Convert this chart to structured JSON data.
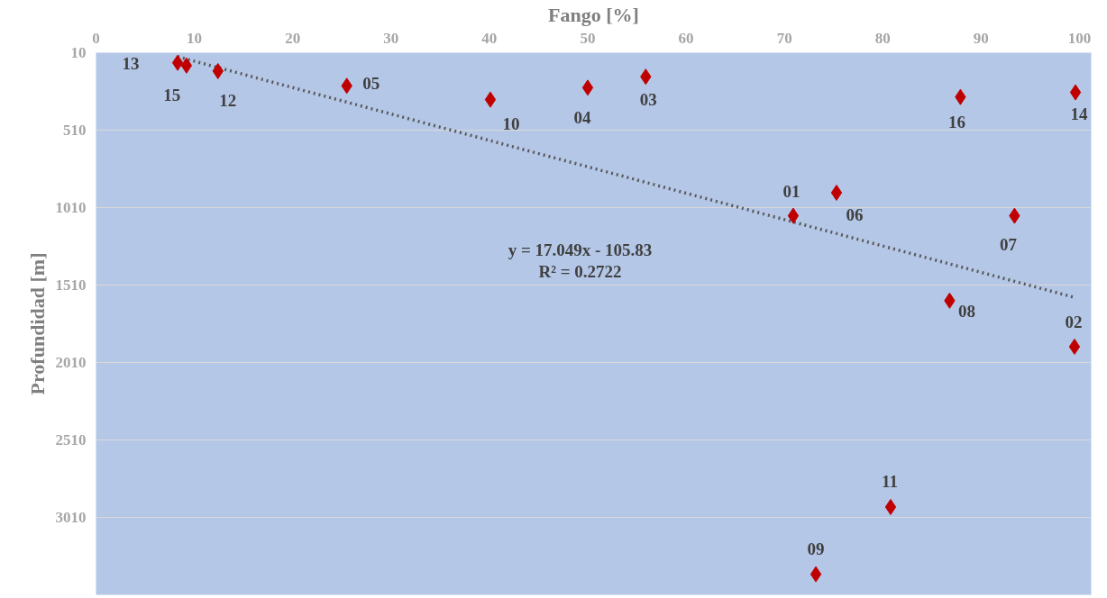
{
  "chart_data": {
    "type": "scatter",
    "xlabel": "Fango [%]",
    "ylabel": "Profundidad [m]",
    "xlim": [
      0,
      101.2
    ],
    "xticks": [
      0,
      10,
      20,
      30,
      40,
      50,
      60,
      70,
      80,
      90,
      100
    ],
    "ylim": [
      3510,
      10
    ],
    "yticks": [
      10,
      510,
      1010,
      1510,
      2010,
      2510,
      3010
    ],
    "grid": "y",
    "series": [
      {
        "marker": "diamond",
        "color": "#c00000",
        "x": [
          8.3,
          9.2,
          12.4,
          25.5,
          40.1,
          50.0,
          55.9,
          87.9,
          99.6,
          70.9,
          75.3,
          93.4,
          86.8,
          99.5,
          80.8,
          73.2
        ],
        "values": [
          75,
          93,
          129,
          224,
          313,
          236,
          165,
          296,
          266,
          1063,
          914,
          1063,
          1611,
          1908,
          2943,
          3377
        ]
      },
      {
        "type": "line",
        "line_style": "dotted",
        "color": "#595959",
        "x": [
          8.3,
          99.5
        ],
        "values": [
          36,
          1590
        ]
      }
    ],
    "annotations": [
      {
        "text": "13",
        "x": 8.3,
        "y": 75
      },
      {
        "text": "15",
        "x": 9.2,
        "y": 93
      },
      {
        "text": "12",
        "x": 12.4,
        "y": 129
      },
      {
        "text": "05",
        "x": 25.5,
        "y": 224
      },
      {
        "text": "10",
        "x": 40.1,
        "y": 313
      },
      {
        "text": "04",
        "x": 50.0,
        "y": 236
      },
      {
        "text": "03",
        "x": 55.9,
        "y": 165
      },
      {
        "text": "16",
        "x": 87.9,
        "y": 296
      },
      {
        "text": "14",
        "x": 99.6,
        "y": 266
      },
      {
        "text": "01",
        "x": 70.9,
        "y": 1063
      },
      {
        "text": "06",
        "x": 75.3,
        "y": 914
      },
      {
        "text": "07",
        "x": 93.4,
        "y": 1063
      },
      {
        "text": "08",
        "x": 86.8,
        "y": 1611
      },
      {
        "text": "02",
        "x": 99.5,
        "y": 1908
      },
      {
        "text": "11",
        "x": 80.8,
        "y": 2943
      },
      {
        "text": "09",
        "x": 73.2,
        "y": 3377
      },
      "y = 17.049x - 105.83",
      "R² = 0.2722"
    ]
  }
}
